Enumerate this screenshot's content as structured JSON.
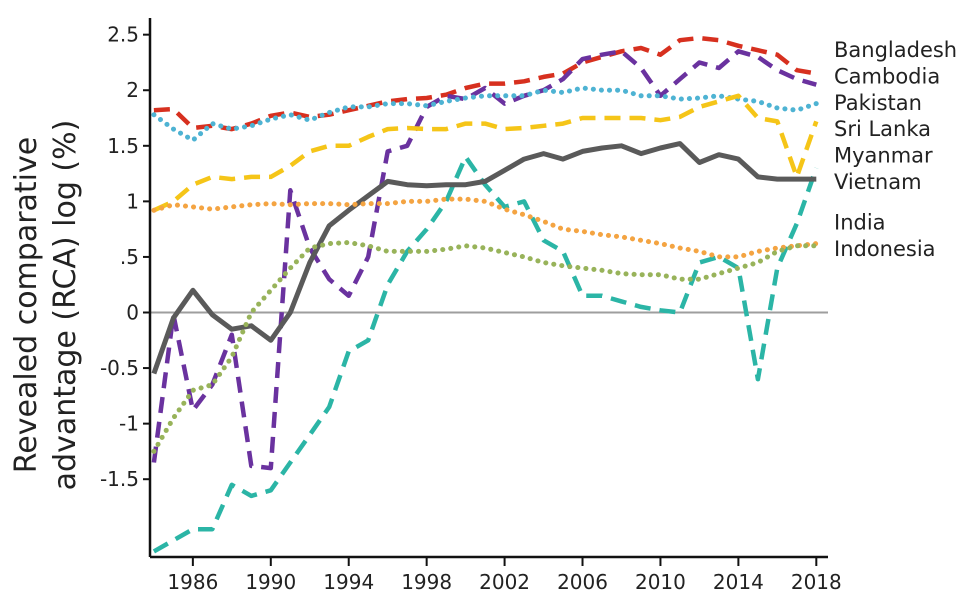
{
  "chart_data": {
    "type": "line",
    "title": "",
    "xlabel": "",
    "ylabel": "Revealed comparative advantage (RCA) log (%)",
    "ylabel_lines": [
      "Revealed comparative",
      "advantage (RCA) log (%)"
    ],
    "xlim": [
      1983.8,
      2018.6
    ],
    "ylim": [
      -2.2,
      2.65
    ],
    "x_ticks": [
      1986,
      1990,
      1994,
      1998,
      2002,
      2006,
      2010,
      2014,
      2018
    ],
    "x_tick_labels": [
      "1986",
      "1990",
      "1994",
      "1998",
      "2002",
      "2006",
      "2010",
      "2014",
      "2018"
    ],
    "y_ticks": [
      2.5,
      2,
      1.5,
      1,
      0.5,
      0,
      -0.5,
      -1,
      -1.5
    ],
    "y_tick_labels": [
      "2.5",
      "2",
      "1.5",
      "1",
      ".5",
      "0",
      "-0.5",
      "-1",
      "-1.5"
    ],
    "zero_line": true,
    "legend_placement": "right, at line ends",
    "x": [
      1984,
      1985,
      1986,
      1987,
      1988,
      1989,
      1990,
      1991,
      1992,
      1993,
      1994,
      1995,
      1996,
      1997,
      1998,
      1999,
      2000,
      2001,
      2002,
      2003,
      2004,
      2005,
      2006,
      2007,
      2008,
      2009,
      2010,
      2011,
      2012,
      2013,
      2014,
      2015,
      2016,
      2017,
      2018
    ],
    "series": [
      {
        "name": "Bangladesh",
        "color": "#d7301f",
        "style": "dashed",
        "values": [
          1.82,
          1.83,
          1.66,
          1.68,
          1.65,
          1.7,
          1.77,
          1.8,
          1.76,
          1.78,
          1.82,
          1.86,
          1.9,
          1.92,
          1.93,
          1.96,
          2.02,
          2.06,
          2.06,
          2.08,
          2.12,
          2.15,
          2.25,
          2.3,
          2.35,
          2.38,
          2.32,
          2.45,
          2.47,
          2.45,
          2.4,
          2.36,
          2.32,
          2.18,
          2.15
        ]
      },
      {
        "name": "Cambodia",
        "color": "#6a329f",
        "style": "dashed",
        "values": [
          -1.35,
          -0.02,
          -0.88,
          -0.65,
          -0.2,
          -1.38,
          -1.4,
          1.1,
          0.58,
          0.3,
          0.15,
          0.5,
          1.45,
          1.5,
          1.85,
          1.95,
          1.92,
          2.02,
          1.88,
          1.95,
          2.0,
          2.1,
          2.28,
          2.32,
          2.35,
          2.2,
          1.95,
          2.1,
          2.25,
          2.2,
          2.35,
          2.3,
          2.18,
          2.1,
          2.05
        ]
      },
      {
        "name": "Pakistan",
        "color": "#4eb3d3",
        "style": "dotted",
        "values": [
          1.78,
          1.65,
          1.55,
          1.7,
          1.65,
          1.68,
          1.74,
          1.78,
          1.73,
          1.8,
          1.85,
          1.85,
          1.88,
          1.88,
          1.86,
          1.9,
          1.93,
          1.95,
          1.95,
          1.95,
          2.0,
          1.98,
          2.02,
          2.0,
          2.0,
          1.95,
          1.95,
          1.92,
          1.93,
          1.95,
          1.92,
          1.9,
          1.84,
          1.82,
          1.88
        ]
      },
      {
        "name": "Sri Lanka",
        "color": "#f5c518",
        "style": "dashed",
        "values": [
          0.92,
          1.0,
          1.15,
          1.22,
          1.2,
          1.22,
          1.22,
          1.32,
          1.45,
          1.5,
          1.5,
          1.58,
          1.65,
          1.66,
          1.65,
          1.65,
          1.7,
          1.7,
          1.65,
          1.66,
          1.68,
          1.7,
          1.75,
          1.75,
          1.75,
          1.75,
          1.73,
          1.76,
          1.85,
          1.9,
          1.95,
          1.75,
          1.72,
          1.22,
          1.72
        ]
      },
      {
        "name": "Myanmar",
        "color": "#2bb5a6",
        "style": "dashed",
        "values": [
          -2.15,
          -2.05,
          -1.95,
          -1.95,
          -1.55,
          -1.65,
          -1.6,
          -1.35,
          -1.1,
          -0.85,
          -0.35,
          -0.25,
          0.25,
          0.55,
          0.75,
          1.0,
          1.4,
          1.15,
          0.95,
          1.0,
          0.65,
          0.55,
          0.15,
          0.15,
          0.1,
          0.05,
          0.02,
          0.0,
          0.45,
          0.5,
          0.4,
          -0.6,
          0.4,
          0.8,
          1.3
        ]
      },
      {
        "name": "Vietnam",
        "color": "#5a5a5a",
        "style": "solid",
        "values": [
          -0.55,
          -0.05,
          0.2,
          -0.02,
          -0.15,
          -0.12,
          -0.25,
          0.0,
          0.45,
          0.78,
          0.92,
          1.05,
          1.18,
          1.15,
          1.14,
          1.15,
          1.15,
          1.18,
          1.28,
          1.38,
          1.43,
          1.38,
          1.45,
          1.48,
          1.5,
          1.43,
          1.48,
          1.52,
          1.35,
          1.42,
          1.38,
          1.22,
          1.2,
          1.2,
          1.2
        ]
      },
      {
        "name": "India",
        "color": "#f4a442",
        "style": "dotted",
        "values": [
          0.92,
          0.97,
          0.95,
          0.93,
          0.95,
          0.97,
          0.98,
          0.97,
          0.98,
          0.98,
          0.97,
          0.98,
          0.98,
          1.0,
          1.0,
          1.02,
          1.02,
          1.0,
          0.93,
          0.88,
          0.82,
          0.75,
          0.73,
          0.7,
          0.68,
          0.65,
          0.62,
          0.58,
          0.55,
          0.5,
          0.5,
          0.55,
          0.58,
          0.6,
          0.62
        ]
      },
      {
        "name": "Indonesia",
        "color": "#98b35a",
        "style": "dotted",
        "values": [
          -1.25,
          -0.95,
          -0.7,
          -0.65,
          -0.4,
          0.0,
          0.2,
          0.4,
          0.58,
          0.62,
          0.63,
          0.6,
          0.55,
          0.55,
          0.55,
          0.57,
          0.6,
          0.58,
          0.54,
          0.5,
          0.45,
          0.42,
          0.4,
          0.38,
          0.35,
          0.34,
          0.34,
          0.3,
          0.3,
          0.35,
          0.4,
          0.45,
          0.55,
          0.6,
          0.6
        ]
      }
    ]
  }
}
